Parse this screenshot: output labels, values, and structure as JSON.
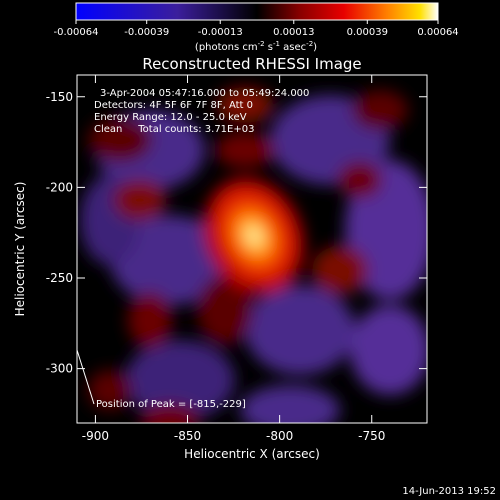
{
  "colorbar": {
    "ticks": [
      "-0.00064",
      "-0.00039",
      "-0.00013",
      "0.00013",
      "0.00039",
      "0.00064"
    ],
    "tick_values": [
      -0.00064,
      -0.00039,
      -0.00013,
      0.00013,
      0.00039,
      0.00064
    ],
    "range": [
      -0.00064,
      0.00064
    ],
    "unit_pre": "(photons cm",
    "unit_exp1": "-2",
    "unit_mid1": " s",
    "unit_exp2": "-1",
    "unit_mid2": " asec",
    "unit_exp3": "-2",
    "unit_post": ")"
  },
  "chart_data": {
    "type": "heatmap",
    "title": "Reconstructed RHESSI Image",
    "xlabel": "Heliocentric X (arcsec)",
    "ylabel": "Heliocentric Y (arcsec)",
    "xlim": [
      -910,
      -720
    ],
    "ylim": [
      -330,
      -138
    ],
    "x_ticks": [
      -900,
      -850,
      -800,
      -750
    ],
    "y_ticks": [
      -150,
      -200,
      -250,
      -300
    ],
    "x_tick_labels": [
      "-900",
      "-850",
      "-800",
      "-750"
    ],
    "y_tick_labels": [
      "-150",
      "-200",
      "-250",
      "-300"
    ],
    "annotations": [
      "3-Apr-2004 05:47:16.000 to 05:49:24.000",
      "Detectors: 4F 5F 6F 7F 8F, Att 0",
      "Energy Range: 12.0 - 25.0 keV",
      "Clean     Total counts: 3.71E+03"
    ],
    "peak": {
      "x": -815,
      "y": -229,
      "label": "Position of Peak = [-815,-229]"
    },
    "footer": "14-Jun-2013 19:52",
    "intensity_range": [
      -0.00064,
      0.00064
    ]
  }
}
